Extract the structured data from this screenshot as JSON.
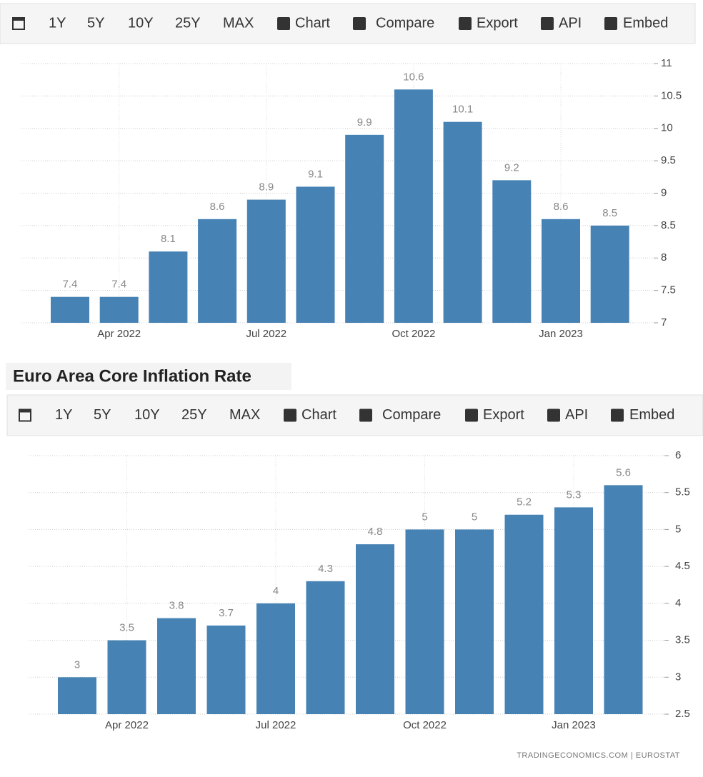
{
  "toolbar": [
    "1Y",
    "5Y",
    "10Y",
    "25Y",
    "MAX",
    "Chart",
    "Compare",
    "Export",
    "API",
    "Embed"
  ],
  "chart_data": [
    {
      "type": "bar",
      "color": "#4682b4",
      "grid": true,
      "categories": [
        null,
        "Apr 2022",
        null,
        null,
        "Jul 2022",
        null,
        null,
        "Oct 2022",
        null,
        null,
        "Jan 2023",
        null
      ],
      "values": [
        7.4,
        7.4,
        8.1,
        8.6,
        8.9,
        9.1,
        9.9,
        10.6,
        10.1,
        9.2,
        8.6,
        8.5
      ],
      "ylim": [
        7,
        11
      ],
      "yticks": [
        7,
        7.5,
        8,
        8.5,
        9,
        9.5,
        10,
        10.5,
        11
      ]
    },
    {
      "type": "bar",
      "title": "Euro Area Core Inflation Rate",
      "color": "#4682b4",
      "grid": true,
      "categories": [
        null,
        "Apr 2022",
        null,
        null,
        "Jul 2022",
        null,
        null,
        "Oct 2022",
        null,
        null,
        "Jan 2023",
        null
      ],
      "values": [
        3,
        3.5,
        3.8,
        3.7,
        4,
        4.3,
        4.8,
        5,
        5,
        5.2,
        5.3,
        5.6
      ],
      "ylim": [
        2.5,
        6
      ],
      "yticks": [
        2.5,
        3,
        3.5,
        4,
        4.5,
        5,
        5.5,
        6
      ]
    }
  ],
  "source": "TRADINGECONOMICS.COM  |  EUROSTAT"
}
